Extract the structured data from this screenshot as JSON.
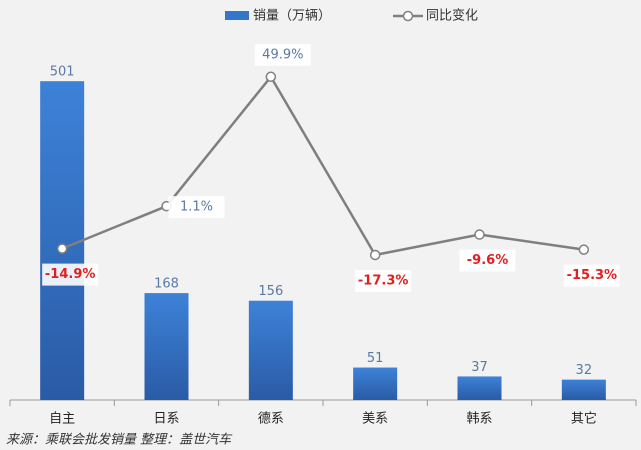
{
  "chart_data": {
    "type": "bar-line",
    "categories": [
      "自主",
      "日系",
      "德系",
      "美系",
      "韩系",
      "其它"
    ],
    "series": [
      {
        "name": "销量（万辆）",
        "type": "bar",
        "color": "#3675c8",
        "axis": "y",
        "values": [
          501,
          168,
          156,
          51,
          37,
          32
        ]
      },
      {
        "name": "同比变化",
        "type": "line",
        "color": "#7f7f7f",
        "axis": "y2",
        "values": [
          -14.9,
          1.1,
          49.9,
          -17.3,
          -9.6,
          -15.3
        ],
        "value_labels": [
          "-14.9%",
          "1.1%",
          "49.9%",
          "-17.3%",
          "-9.6%",
          "-15.3%"
        ]
      }
    ],
    "ylim": [
      0,
      550
    ],
    "y2lim": [
      -72,
      60
    ],
    "source": "来源：乘联会批发销量  整理：盖世汽车"
  }
}
